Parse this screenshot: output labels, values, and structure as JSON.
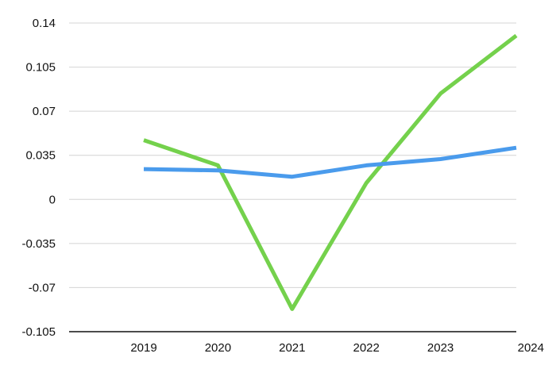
{
  "chart_data": {
    "type": "line",
    "title": "",
    "xlabel": "",
    "ylabel": "",
    "categories": [
      "2019",
      "2020",
      "2021",
      "2022",
      "2023",
      "2024"
    ],
    "yticks": [
      "0.14",
      "0.105",
      "0.07",
      "0.035",
      "0",
      "-0.035",
      "-0.07",
      "-0.105"
    ],
    "ylim": [
      -0.105,
      0.14
    ],
    "grid": true,
    "legend": "none",
    "series": [
      {
        "color": "#74d14c",
        "values": [
          0.047,
          0.027,
          -0.087,
          0.013,
          0.084,
          0.13
        ]
      },
      {
        "color": "#4a9bec",
        "values": [
          0.024,
          0.023,
          0.018,
          0.027,
          0.032,
          0.041
        ]
      }
    ]
  }
}
